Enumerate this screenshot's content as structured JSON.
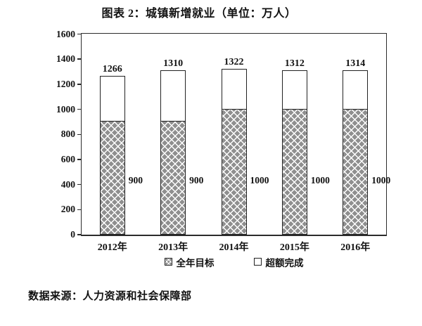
{
  "page": {
    "title": "图表 2：城镇新增就业（单位：万人）",
    "source_note": "数据来源：人力资源和社会保障部"
  },
  "chart_data": {
    "type": "bar",
    "stacked": true,
    "title": "图表 2：城镇新增就业（单位：万人）",
    "unit": "万人",
    "categories": [
      "2012年",
      "2013年",
      "2014年",
      "2015年",
      "2016年"
    ],
    "series": [
      {
        "name": "全年目标",
        "style": "hatched",
        "values": [
          900,
          900,
          1000,
          1000,
          1000
        ]
      },
      {
        "name": "超额完成",
        "style": "white",
        "values": [
          366,
          410,
          322,
          312,
          314
        ]
      }
    ],
    "totals": [
      1266,
      1310,
      1322,
      1312,
      1314
    ],
    "total_labels_above_bars": [
      "1266",
      "1310",
      "1322",
      "1312",
      "1314"
    ],
    "target_labels_right_of_bars": [
      "900",
      "900",
      "1000",
      "1000",
      "1000"
    ],
    "ylim": [
      0,
      1600
    ],
    "yticks": [
      0,
      200,
      400,
      600,
      800,
      1000,
      1200,
      1400,
      1600
    ],
    "grid": false,
    "legend_position": "bottom"
  },
  "colors": {
    "text": "#111111",
    "bar_border": "#222222",
    "hatch_fill": "#8f8f8f",
    "hatch_line": "#ffffff",
    "extra_fill": "#ffffff",
    "frame_border": "#2b2b2b"
  }
}
